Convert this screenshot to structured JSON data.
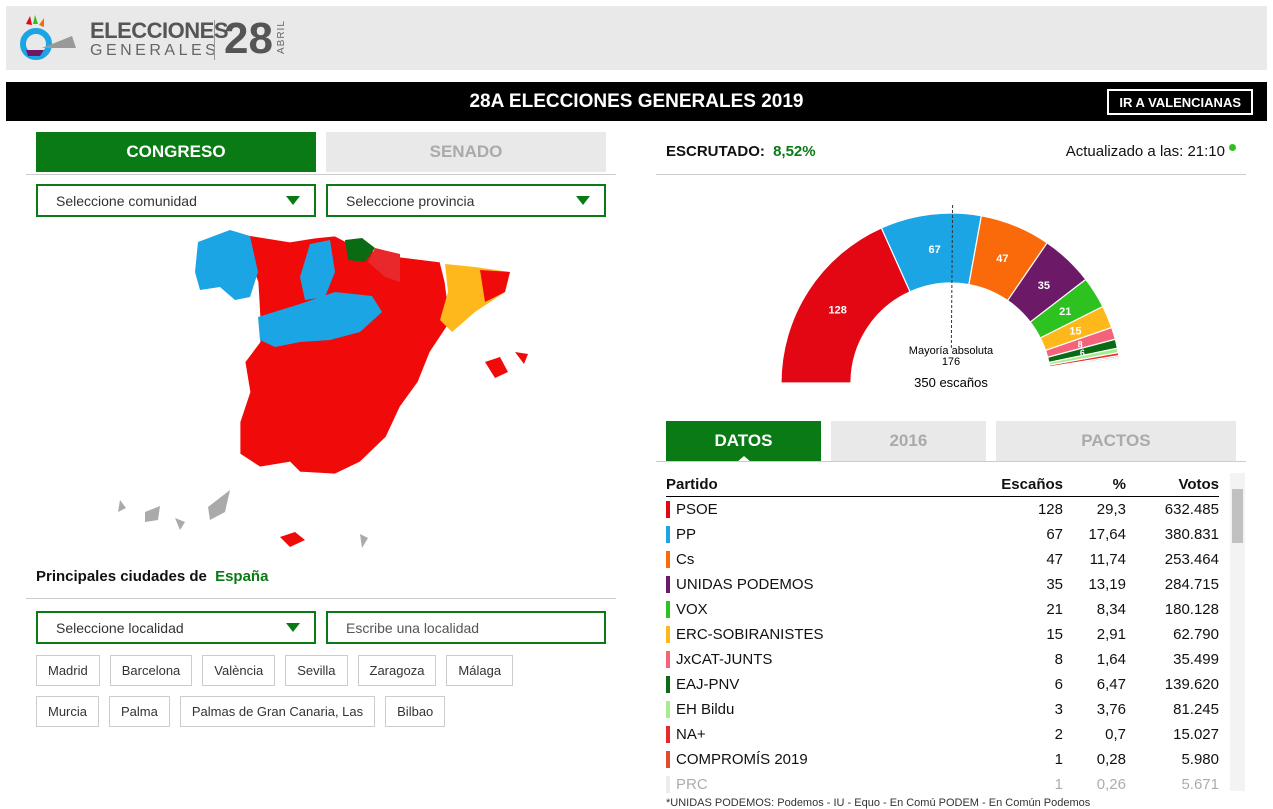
{
  "header": {
    "logo_line1": "ELECCIONES",
    "logo_line2": "GENERALES",
    "logo_day": "28",
    "logo_month": "ABRIL"
  },
  "banner": {
    "title": "28A ELECCIONES GENERALES 2019",
    "button": "IR A VALENCIANAS"
  },
  "chamber_tabs": [
    "CONGRESO",
    "SENADO"
  ],
  "region_selects": [
    "Seleccione comunidad",
    "Seleccione provincia"
  ],
  "cities": {
    "heading": "Principales ciudades de",
    "place": "España",
    "select": "Seleccione localidad",
    "search": "Escribe una localidad",
    "buttons": [
      "Madrid",
      "Barcelona",
      "València",
      "Sevilla",
      "Zaragoza",
      "Málaga",
      "Murcia",
      "Palma",
      "Palmas de Gran Canaria, Las",
      "Bilbao"
    ]
  },
  "status": {
    "label": "ESCRUTADO:",
    "value": "8,52%",
    "updated": "Actualizado a las: 21:10"
  },
  "hemicycle": {
    "majority_label": "Mayoría absoluta",
    "majority": 176,
    "total": 350,
    "total_unit": "escaños"
  },
  "data_tabs": [
    "DATOS",
    "2016",
    "PACTOS"
  ],
  "table": {
    "headers": [
      "Partido",
      "Escaños",
      "%",
      "Votos"
    ],
    "rows": [
      {
        "party": "PSOE",
        "seats": 128,
        "pct": "29,3",
        "votes": "632.485",
        "color": "#e30613"
      },
      {
        "party": "PP",
        "seats": 67,
        "pct": "17,64",
        "votes": "380.831",
        "color": "#1ba5e5"
      },
      {
        "party": "Cs",
        "seats": 47,
        "pct": "11,74",
        "votes": "253.464",
        "color": "#fa6a0a"
      },
      {
        "party": "UNIDAS PODEMOS",
        "seats": 35,
        "pct": "13,19",
        "votes": "284.715",
        "color": "#6c1a67"
      },
      {
        "party": "VOX",
        "seats": 21,
        "pct": "8,34",
        "votes": "180.128",
        "color": "#2dc21f"
      },
      {
        "party": "ERC-SOBIRANISTES",
        "seats": 15,
        "pct": "2,91",
        "votes": "62.790",
        "color": "#ffb81c"
      },
      {
        "party": "JxCAT-JUNTS",
        "seats": 8,
        "pct": "1,64",
        "votes": "35.499",
        "color": "#f4637a"
      },
      {
        "party": "EAJ-PNV",
        "seats": 6,
        "pct": "6,47",
        "votes": "139.620",
        "color": "#0b6b14"
      },
      {
        "party": "EH Bildu",
        "seats": 3,
        "pct": "3,76",
        "votes": "81.245",
        "color": "#a6ee8c"
      },
      {
        "party": "NA+",
        "seats": 2,
        "pct": "0,7",
        "votes": "15.027",
        "color": "#e8282a"
      },
      {
        "party": "COMPROMÍS 2019",
        "seats": 1,
        "pct": "0,28",
        "votes": "5.980",
        "color": "#e3492b"
      },
      {
        "party": "PRC",
        "seats": 1,
        "pct": "0,26",
        "votes": "5.671",
        "color": "#c9c9c9"
      }
    ]
  },
  "note": "*UNIDAS PODEMOS: Podemos - IU - Equo - En Comú PODEM - En Común Podemos"
}
